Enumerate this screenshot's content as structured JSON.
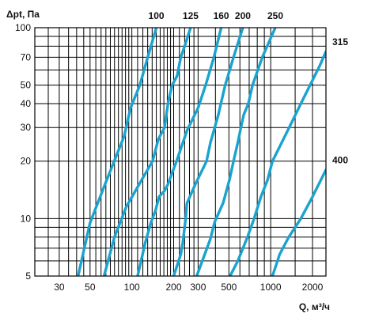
{
  "chart_data": {
    "type": "line",
    "xlabel": "Q, м³/ч",
    "ylabel": "Δpt, Па",
    "x_scale": "log",
    "y_scale": "log",
    "xlim": [
      20,
      2500
    ],
    "ylim": [
      5,
      100
    ],
    "grid": true,
    "line_color": "#1ba3cf",
    "x_ticks": [
      30,
      50,
      100,
      200,
      300,
      500,
      1000,
      2000
    ],
    "x_tick_labels": [
      "30",
      "50",
      "100",
      "200",
      "300",
      "500",
      "1000",
      "2000"
    ],
    "x_grid": [
      25,
      30,
      35,
      40,
      45,
      50,
      55,
      60,
      65,
      70,
      75,
      80,
      85,
      90,
      95,
      100,
      110,
      120,
      130,
      140,
      150,
      160,
      170,
      180,
      190,
      200,
      220,
      240,
      260,
      280,
      300,
      400,
      500,
      600,
      700,
      800,
      900,
      1000,
      1500,
      2000
    ],
    "y_ticks": [
      5,
      10,
      20,
      30,
      40,
      50,
      70,
      100
    ],
    "y_tick_labels": [
      "5",
      "10",
      "20",
      "30",
      "40",
      "50",
      "70",
      "100"
    ],
    "y_grid": [
      5,
      6,
      7,
      8,
      9,
      10,
      20,
      30,
      40,
      50,
      60,
      70,
      80,
      90,
      100
    ],
    "series": [
      {
        "name": "100",
        "label_pos": "top",
        "points": [
          [
            41,
            5
          ],
          [
            50,
            9.5
          ],
          [
            65,
            15.5
          ],
          [
            88,
            27
          ],
          [
            98,
            38
          ],
          [
            114,
            50
          ],
          [
            130,
            70
          ],
          [
            150,
            100
          ]
        ]
      },
      {
        "name": "125",
        "label_pos": "top",
        "points": [
          [
            63,
            5
          ],
          [
            75,
            8
          ],
          [
            91,
            11.5
          ],
          [
            118,
            16
          ],
          [
            141,
            20
          ],
          [
            155,
            26
          ],
          [
            172,
            30
          ],
          [
            183,
            41
          ],
          [
            195,
            50
          ],
          [
            212,
            56
          ],
          [
            225,
            70
          ],
          [
            240,
            80
          ],
          [
            265,
            100
          ]
        ]
      },
      {
        "name": "160",
        "label_pos": "top",
        "points": [
          [
            110,
            5
          ],
          [
            125,
            7.5
          ],
          [
            137,
            9.5
          ],
          [
            148,
            11
          ],
          [
            157,
            13
          ],
          [
            172,
            14
          ],
          [
            181,
            15
          ],
          [
            210,
            20
          ],
          [
            250,
            29
          ],
          [
            300,
            38
          ],
          [
            340,
            50
          ],
          [
            390,
            70
          ],
          [
            440,
            100
          ]
        ]
      },
      {
        "name": "200",
        "label_pos": "top",
        "points": [
          [
            200,
            5
          ],
          [
            225,
            6.5
          ],
          [
            233,
            7.5
          ],
          [
            244,
            10
          ],
          [
            249,
            12
          ],
          [
            285,
            15
          ],
          [
            345,
            20
          ],
          [
            368,
            25
          ],
          [
            420,
            35
          ],
          [
            470,
            50
          ],
          [
            540,
            70
          ],
          [
            630,
            100
          ]
        ]
      },
      {
        "name": "250",
        "label_pos": "top",
        "points": [
          [
            293,
            5
          ],
          [
            335,
            6.5
          ],
          [
            367,
            7.8
          ],
          [
            395,
            9.6
          ],
          [
            455,
            12.1
          ],
          [
            505,
            16
          ],
          [
            540,
            20
          ],
          [
            580,
            25
          ],
          [
            610,
            30
          ],
          [
            640,
            35
          ],
          [
            690,
            40
          ],
          [
            740,
            50
          ],
          [
            870,
            70
          ],
          [
            1080,
            100
          ]
        ]
      },
      {
        "name": "315",
        "label_pos": "right",
        "points": [
          [
            510,
            5
          ],
          [
            580,
            6
          ],
          [
            680,
            8
          ],
          [
            760,
            10
          ],
          [
            850,
            13
          ],
          [
            950,
            16
          ],
          [
            1030,
            20
          ],
          [
            1200,
            25
          ],
          [
            1420,
            32
          ],
          [
            1650,
            40
          ],
          [
            1920,
            50
          ],
          [
            2250,
            63
          ],
          [
            2500,
            75
          ]
        ]
      },
      {
        "name": "400",
        "label_pos": "right",
        "points": [
          [
            1030,
            5
          ],
          [
            1160,
            6.5
          ],
          [
            1350,
            8
          ],
          [
            1650,
            10
          ],
          [
            2000,
            13
          ],
          [
            2500,
            18
          ]
        ]
      }
    ]
  }
}
